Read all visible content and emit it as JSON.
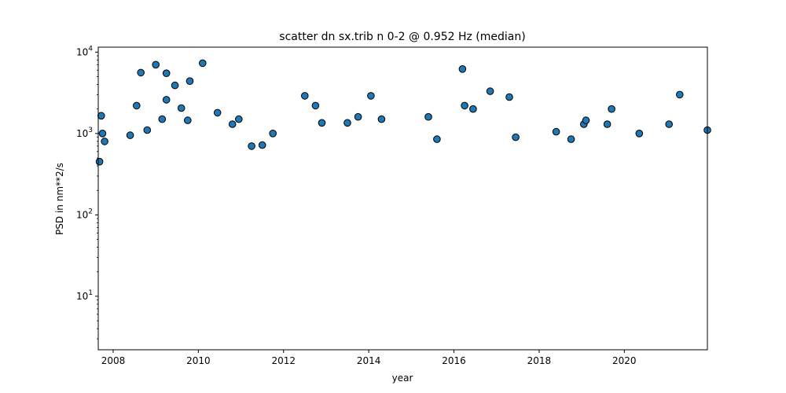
{
  "chart_data": {
    "type": "scatter",
    "title": "scatter dn sx.trib n 0-2 @ 0.952 Hz (median)",
    "xlabel": "year",
    "ylabel": "PSD in nm**2/s",
    "xlim": [
      2007.65,
      2021.95
    ],
    "ylim": [
      2.2,
      11500
    ],
    "yscale": "log",
    "grid": false,
    "xticks": [
      2008,
      2010,
      2012,
      2014,
      2016,
      2018,
      2020
    ],
    "xtick_labels": [
      "2008",
      "2010",
      "2012",
      "2014",
      "2016",
      "2018",
      "2020"
    ],
    "yticks": [
      10,
      100,
      1000,
      10000
    ],
    "ytick_labels": [
      "10^1",
      "10^2",
      "10^3",
      "10^4"
    ],
    "colors": {
      "marker_fill": "#1f77b4",
      "marker_edge": "#000000"
    },
    "series": [
      {
        "points": [
          [
            2007.72,
            1650
          ],
          [
            2007.75,
            1000
          ],
          [
            2007.8,
            800
          ],
          [
            2007.68,
            450
          ],
          [
            2008.4,
            950
          ],
          [
            2008.55,
            2200
          ],
          [
            2008.65,
            5600
          ],
          [
            2008.8,
            1100
          ],
          [
            2009.0,
            7000
          ],
          [
            2009.15,
            1500
          ],
          [
            2009.25,
            5500
          ],
          [
            2009.25,
            2600
          ],
          [
            2009.45,
            3900
          ],
          [
            2009.6,
            2050
          ],
          [
            2009.75,
            1450
          ],
          [
            2009.8,
            4400
          ],
          [
            2010.1,
            7300
          ],
          [
            2010.45,
            1800
          ],
          [
            2010.8,
            1300
          ],
          [
            2010.95,
            1500
          ],
          [
            2011.25,
            700
          ],
          [
            2011.5,
            720
          ],
          [
            2011.75,
            1000
          ],
          [
            2012.5,
            2900
          ],
          [
            2012.75,
            2200
          ],
          [
            2012.9,
            1350
          ],
          [
            2013.5,
            1350
          ],
          [
            2013.75,
            1600
          ],
          [
            2014.05,
            2900
          ],
          [
            2014.3,
            1500
          ],
          [
            2015.4,
            1600
          ],
          [
            2015.6,
            850
          ],
          [
            2016.2,
            6200
          ],
          [
            2016.25,
            2200
          ],
          [
            2016.45,
            2000
          ],
          [
            2016.85,
            3300
          ],
          [
            2017.3,
            2800
          ],
          [
            2017.45,
            900
          ],
          [
            2018.4,
            1050
          ],
          [
            2018.75,
            850
          ],
          [
            2019.05,
            1300
          ],
          [
            2019.1,
            1450
          ],
          [
            2019.6,
            1300
          ],
          [
            2019.7,
            2000
          ],
          [
            2020.35,
            1000
          ],
          [
            2021.05,
            1300
          ],
          [
            2021.3,
            3000
          ],
          [
            2021.95,
            1100
          ]
        ]
      }
    ]
  }
}
